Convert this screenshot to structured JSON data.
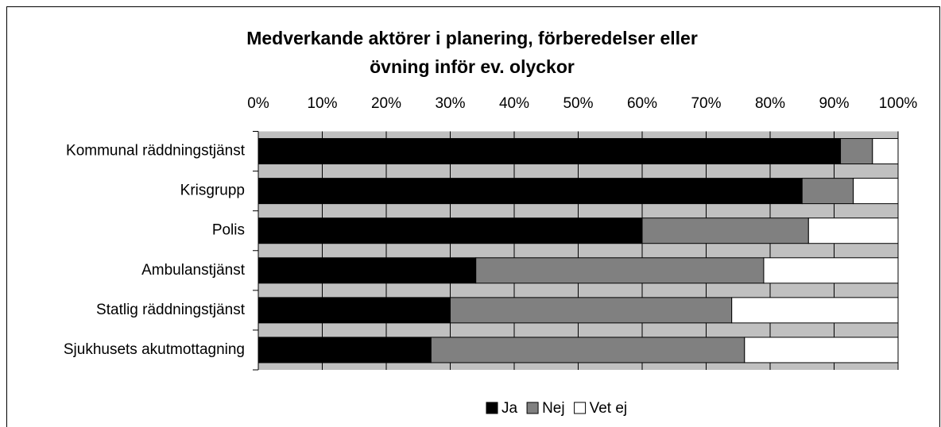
{
  "chart_data": {
    "type": "stacked_barh",
    "title": [
      "Medverkande aktörer i planering, förberedelser eller",
      "övning inför ev. olyckor"
    ],
    "categories": [
      "Kommunal räddningstjänst",
      "Krisgrupp",
      "Polis",
      "Ambulanstjänst",
      "Statlig räddningstjänst",
      "Sjukhusets akutmottagning"
    ],
    "series": [
      {
        "name": "Ja",
        "color": "#000000",
        "values": [
          91,
          85,
          60,
          34,
          30,
          27
        ]
      },
      {
        "name": "Nej",
        "color": "#808080",
        "values": [
          5,
          8,
          26,
          45,
          44,
          49
        ]
      },
      {
        "name": "Vet ej",
        "color": "#ffffff",
        "values": [
          4,
          7,
          14,
          21,
          26,
          24
        ]
      }
    ],
    "xlim": [
      0,
      100
    ],
    "xticks": [
      {
        "value": 0,
        "label": "0%"
      },
      {
        "value": 10,
        "label": "10%"
      },
      {
        "value": 20,
        "label": "20%"
      },
      {
        "value": 30,
        "label": "30%"
      },
      {
        "value": 40,
        "label": "40%"
      },
      {
        "value": 50,
        "label": "50%"
      },
      {
        "value": 60,
        "label": "60%"
      },
      {
        "value": 70,
        "label": "70%"
      },
      {
        "value": 80,
        "label": "80%"
      },
      {
        "value": 90,
        "label": "90%"
      },
      {
        "value": 100,
        "label": "100%"
      }
    ],
    "grid": true,
    "legend": "bottom"
  }
}
